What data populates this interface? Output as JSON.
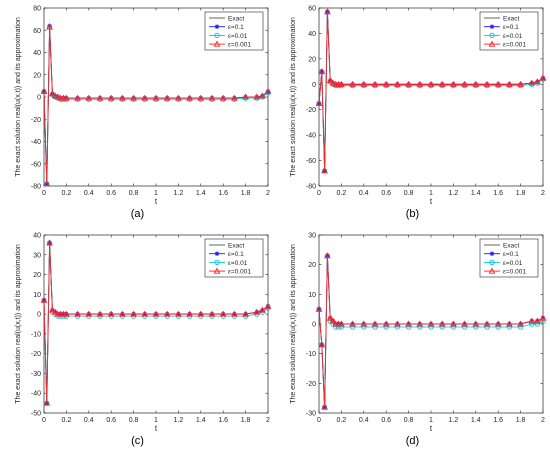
{
  "legend_labels": [
    "Exact",
    "ε=0.1",
    "ε=0.01",
    "ε=0.001"
  ],
  "series_colors": [
    "#555555",
    "#1a1aff",
    "#00c8d8",
    "#ff2020"
  ],
  "series_markers": [
    "none",
    "asterisk",
    "circle",
    "triangle"
  ],
  "chart_data": [
    {
      "type": "line",
      "caption": "(a)",
      "xlabel": "t",
      "ylabel": "The exact solution real(u(x,t)) and its approximation",
      "xlim": [
        0,
        2
      ],
      "ylim": [
        -80,
        80
      ],
      "xticks": [
        0,
        0.2,
        0.4,
        0.6,
        0.8,
        1,
        1.2,
        1.4,
        1.6,
        1.8,
        2
      ],
      "xtick_labels": [
        "0",
        "0.2",
        "0.4",
        "0.6",
        "0.8",
        "1",
        "1.2",
        "1.4",
        "1.6",
        "1.8",
        "2"
      ],
      "yticks": [
        -80,
        -60,
        -40,
        -20,
        0,
        20,
        40,
        60,
        80
      ],
      "ytick_labels": [
        "-80",
        "-60",
        "-40",
        "-20",
        "0",
        "20",
        "40",
        "60",
        "80"
      ],
      "legend_position": "top-right",
      "x": [
        0,
        0.025,
        0.05,
        0.075,
        0.1,
        0.125,
        0.15,
        0.175,
        0.2,
        0.3,
        0.4,
        0.5,
        0.6,
        0.7,
        0.8,
        0.9,
        1.0,
        1.1,
        1.2,
        1.3,
        1.4,
        1.5,
        1.6,
        1.7,
        1.8,
        1.9,
        1.95,
        2.0
      ],
      "series": [
        {
          "name": "Exact",
          "values": [
            5,
            -78,
            63,
            3,
            1,
            0,
            -1,
            -1,
            -1,
            -1,
            -1,
            -1,
            -1,
            -1,
            -1,
            -1,
            -1,
            -1,
            -1,
            -1,
            -1,
            -1,
            -1,
            -1,
            0,
            0,
            1,
            5
          ]
        },
        {
          "name": "ε=0.1",
          "values": [
            5,
            -78,
            64,
            3,
            1,
            0,
            -1,
            -1,
            -1,
            -1,
            -1,
            -1,
            -1,
            -1,
            -1,
            -1,
            -1,
            -1,
            -1,
            -1,
            -1,
            -1,
            -1,
            -1,
            0,
            0,
            1,
            5
          ]
        },
        {
          "name": "ε=0.01",
          "values": [
            5,
            -78,
            63,
            2,
            0,
            -1,
            -2,
            -2,
            -2,
            -2,
            -2,
            -2,
            -2,
            -2,
            -2,
            -2,
            -2,
            -2,
            -2,
            -2,
            -2,
            -2,
            -2,
            -2,
            -1,
            -1,
            0,
            4
          ]
        },
        {
          "name": "ε=0.001",
          "values": [
            5,
            -78,
            63,
            3,
            1,
            0,
            -1,
            -1,
            -1,
            -1,
            -1,
            -1,
            -1,
            -1,
            -1,
            -1,
            -1,
            -1,
            -1,
            -1,
            -1,
            -1,
            -1,
            -1,
            0,
            0,
            1,
            5
          ]
        }
      ]
    },
    {
      "type": "line",
      "caption": "(b)",
      "xlabel": "t",
      "ylabel": "The exact solution real(u(x,t)) and its approximation",
      "xlim": [
        0,
        2
      ],
      "ylim": [
        -80,
        60
      ],
      "xticks": [
        0,
        0.2,
        0.4,
        0.6,
        0.8,
        1,
        1.2,
        1.4,
        1.6,
        1.8,
        2
      ],
      "xtick_labels": [
        "0",
        "0.2",
        "0.4",
        "0.6",
        "0.8",
        "1",
        "1.2",
        "1.4",
        "1.6",
        "1.8",
        "2"
      ],
      "yticks": [
        -80,
        -60,
        -40,
        -20,
        0,
        20,
        40,
        60
      ],
      "ytick_labels": [
        "-80",
        "-60",
        "-40",
        "-20",
        "0",
        "20",
        "40",
        "60"
      ],
      "legend_position": "top-right",
      "x": [
        0,
        0.025,
        0.05,
        0.075,
        0.1,
        0.125,
        0.15,
        0.175,
        0.2,
        0.3,
        0.4,
        0.5,
        0.6,
        0.7,
        0.8,
        0.9,
        1.0,
        1.1,
        1.2,
        1.3,
        1.4,
        1.5,
        1.6,
        1.7,
        1.8,
        1.9,
        1.95,
        2.0
      ],
      "series": [
        {
          "name": "Exact",
          "values": [
            -15,
            10,
            -68,
            57,
            3,
            1,
            0,
            0,
            0,
            0,
            0,
            0,
            0,
            0,
            0,
            0,
            0,
            0,
            0,
            0,
            0,
            0,
            0,
            0,
            0,
            1,
            2,
            5
          ]
        },
        {
          "name": "ε=0.1",
          "values": [
            -15,
            10,
            -68,
            57,
            3,
            1,
            0,
            0,
            0,
            0,
            0,
            0,
            0,
            0,
            0,
            0,
            0,
            0,
            0,
            0,
            0,
            0,
            0,
            0,
            0,
            1,
            2,
            5
          ]
        },
        {
          "name": "ε=0.01",
          "values": [
            -15,
            10,
            -68,
            57,
            2,
            0,
            -1,
            -1,
            -1,
            -1,
            -1,
            -1,
            -1,
            -1,
            -1,
            -1,
            -1,
            -1,
            -1,
            -1,
            -1,
            -1,
            -1,
            -1,
            -1,
            0,
            1,
            4
          ]
        },
        {
          "name": "ε=0.001",
          "values": [
            -15,
            10,
            -68,
            57,
            3,
            1,
            0,
            0,
            0,
            0,
            0,
            0,
            0,
            0,
            0,
            0,
            0,
            0,
            0,
            0,
            0,
            0,
            0,
            0,
            0,
            1,
            2,
            5
          ]
        }
      ]
    },
    {
      "type": "line",
      "caption": "(c)",
      "xlabel": "t",
      "ylabel": "The exact solution real(u(x,t)) and its approximation",
      "xlim": [
        0,
        2
      ],
      "ylim": [
        -50,
        40
      ],
      "xticks": [
        0,
        0.2,
        0.4,
        0.6,
        0.8,
        1,
        1.2,
        1.4,
        1.6,
        1.8,
        2
      ],
      "xtick_labels": [
        "0",
        "0.2",
        "0.4",
        "0.6",
        "0.8",
        "1",
        "1.2",
        "1.4",
        "1.6",
        "1.8",
        "2"
      ],
      "yticks": [
        -50,
        -40,
        -30,
        -20,
        -10,
        0,
        10,
        20,
        30,
        40
      ],
      "ytick_labels": [
        "-50",
        "-40",
        "-30",
        "-20",
        "-10",
        "0",
        "10",
        "20",
        "30",
        "40"
      ],
      "legend_position": "top-right",
      "x": [
        0,
        0.025,
        0.05,
        0.075,
        0.1,
        0.125,
        0.15,
        0.175,
        0.2,
        0.3,
        0.4,
        0.5,
        0.6,
        0.7,
        0.8,
        0.9,
        1.0,
        1.1,
        1.2,
        1.3,
        1.4,
        1.5,
        1.6,
        1.7,
        1.8,
        1.9,
        1.95,
        2.0
      ],
      "series": [
        {
          "name": "Exact",
          "values": [
            7,
            -45,
            36,
            2,
            1,
            0,
            0,
            0,
            0,
            0,
            0,
            0,
            0,
            0,
            0,
            0,
            0,
            0,
            0,
            0,
            0,
            0,
            0,
            0,
            0,
            1,
            2,
            4
          ]
        },
        {
          "name": "ε=0.1",
          "values": [
            7,
            -45,
            36,
            2,
            1,
            0,
            0,
            0,
            0,
            0,
            0,
            0,
            0,
            0,
            0,
            0,
            0,
            0,
            0,
            0,
            0,
            0,
            0,
            0,
            0,
            1,
            2,
            4
          ]
        },
        {
          "name": "ε=0.01",
          "values": [
            7,
            -45,
            36,
            1,
            0,
            -1,
            -1,
            -1,
            -1,
            -1,
            -1,
            -1,
            -1,
            -1,
            -1,
            -1,
            -1,
            -1,
            -1,
            -1,
            -1,
            -1,
            -1,
            -1,
            -1,
            0,
            1,
            3
          ]
        },
        {
          "name": "ε=0.001",
          "values": [
            7,
            -45,
            36,
            2,
            1,
            0,
            0,
            0,
            0,
            0,
            0,
            0,
            0,
            0,
            0,
            0,
            0,
            0,
            0,
            0,
            0,
            0,
            0,
            0,
            0,
            1,
            2,
            4
          ]
        }
      ]
    },
    {
      "type": "line",
      "caption": "(d)",
      "xlabel": "t",
      "ylabel": "The exact solution real(u(x,t)) and its approximation",
      "xlim": [
        0,
        2
      ],
      "ylim": [
        -30,
        30
      ],
      "xticks": [
        0,
        0.2,
        0.4,
        0.6,
        0.8,
        1,
        1.2,
        1.4,
        1.6,
        1.8,
        2
      ],
      "xtick_labels": [
        "0",
        "0.2",
        "0.4",
        "0.6",
        "0.8",
        "1",
        "1.2",
        "1.4",
        "1.6",
        "1.8",
        "2"
      ],
      "yticks": [
        -30,
        -20,
        -10,
        0,
        10,
        20,
        30
      ],
      "ytick_labels": [
        "-30",
        "-20",
        "-10",
        "0",
        "10",
        "20",
        "30"
      ],
      "legend_position": "top-right",
      "x": [
        0,
        0.025,
        0.05,
        0.075,
        0.1,
        0.125,
        0.15,
        0.175,
        0.2,
        0.3,
        0.4,
        0.5,
        0.6,
        0.7,
        0.8,
        0.9,
        1.0,
        1.1,
        1.2,
        1.3,
        1.4,
        1.5,
        1.6,
        1.7,
        1.8,
        1.9,
        1.95,
        2.0
      ],
      "series": [
        {
          "name": "Exact",
          "values": [
            5,
            -7,
            -28,
            23,
            2,
            1,
            0,
            0,
            0,
            0,
            0,
            0,
            0,
            0,
            0,
            0,
            0,
            0,
            0,
            0,
            0,
            0,
            0,
            0,
            0,
            1,
            1,
            2
          ]
        },
        {
          "name": "ε=0.1",
          "values": [
            5,
            -7,
            -28,
            23,
            2,
            1,
            0,
            0,
            0,
            0,
            0,
            0,
            0,
            0,
            0,
            0,
            0,
            0,
            0,
            0,
            0,
            0,
            0,
            0,
            0,
            1,
            1,
            2
          ]
        },
        {
          "name": "ε=0.01",
          "values": [
            5,
            -7,
            -28,
            23,
            1,
            0,
            -1,
            -1,
            -1,
            -1,
            -1,
            -1,
            -1,
            -1,
            -1,
            -1,
            -1,
            -1,
            -1,
            -1,
            -1,
            -1,
            -1,
            -1,
            -1,
            0,
            0,
            1
          ]
        },
        {
          "name": "ε=0.001",
          "values": [
            5,
            -7,
            -28,
            23,
            2,
            1,
            0,
            0,
            0,
            0,
            0,
            0,
            0,
            0,
            0,
            0,
            0,
            0,
            0,
            0,
            0,
            0,
            0,
            0,
            0,
            1,
            1,
            2
          ]
        }
      ]
    }
  ]
}
